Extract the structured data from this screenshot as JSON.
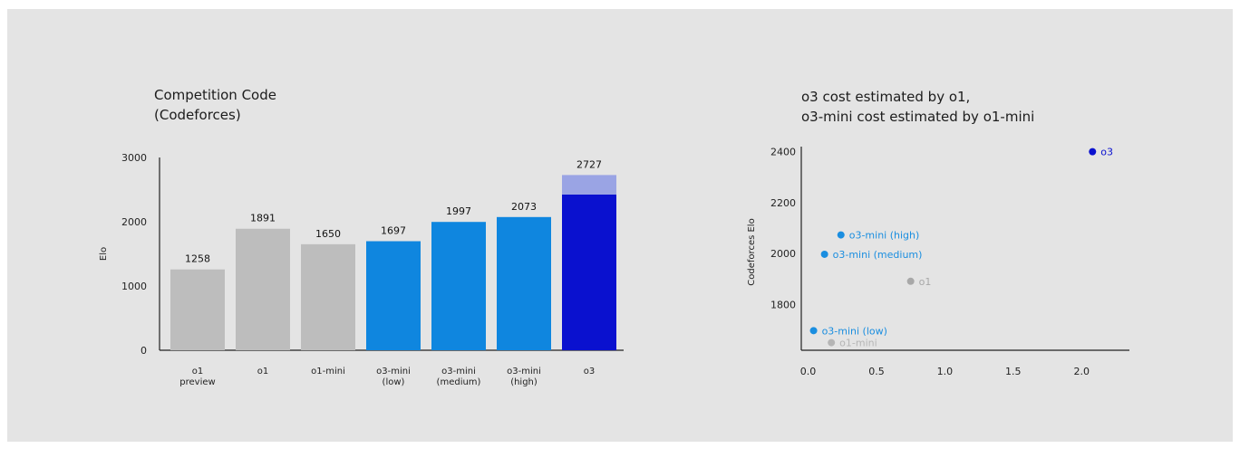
{
  "chart_data": [
    {
      "type": "bar",
      "title_lines": [
        "Competition Code",
        "(Codeforces)"
      ],
      "ylabel": "Elo",
      "xlabel": "",
      "ylim": [
        0,
        3000
      ],
      "yticks": [
        "0",
        "1000",
        "2000",
        "3000"
      ],
      "grid": false,
      "categories": [
        [
          "o1",
          "preview"
        ],
        [
          "o1"
        ],
        [
          "o1-mini"
        ],
        [
          "o3-mini",
          "(low)"
        ],
        [
          "o3-mini",
          "(medium)"
        ],
        [
          "o3-mini",
          "(high)"
        ],
        [
          "o3"
        ]
      ],
      "values": [
        1258,
        1891,
        1650,
        1697,
        1997,
        2073,
        2727
      ],
      "stacked_base_o3": 2424,
      "colors": [
        "#bdbdbd",
        "#bdbdbd",
        "#bdbdbd",
        "#0f86df",
        "#0f86df",
        "#0f86df",
        "#0a11cf"
      ],
      "o3_top_segment_color": "#9aa4e4"
    },
    {
      "type": "scatter",
      "title_lines": [
        "o3 cost estimated by o1,",
        "o3-mini cost estimated by o1-mini"
      ],
      "ylabel": "Codeforces Elo",
      "xlabel": "",
      "xlim": [
        -0.05,
        2.35
      ],
      "ylim": [
        1620,
        2420
      ],
      "xticks": [
        "0.0",
        "0.5",
        "1.0",
        "1.5",
        "2.0"
      ],
      "yticks": [
        "1800",
        "2000",
        "2200",
        "2400"
      ],
      "grid": false,
      "points": [
        {
          "label": "o3",
          "x": 2.08,
          "y": 2400,
          "color": "#0a11cf"
        },
        {
          "label": "o3-mini (high)",
          "x": 0.24,
          "y": 2073,
          "color": "#1a8ee0"
        },
        {
          "label": "o3-mini (medium)",
          "x": 0.12,
          "y": 1997,
          "color": "#1a8ee0"
        },
        {
          "label": "o1",
          "x": 0.75,
          "y": 1891,
          "color": "#a8a8a8"
        },
        {
          "label": "o3-mini (low)",
          "x": 0.04,
          "y": 1697,
          "color": "#1a8ee0"
        },
        {
          "label": "o1-mini",
          "x": 0.17,
          "y": 1650,
          "color": "#b5b5b5"
        }
      ]
    }
  ]
}
